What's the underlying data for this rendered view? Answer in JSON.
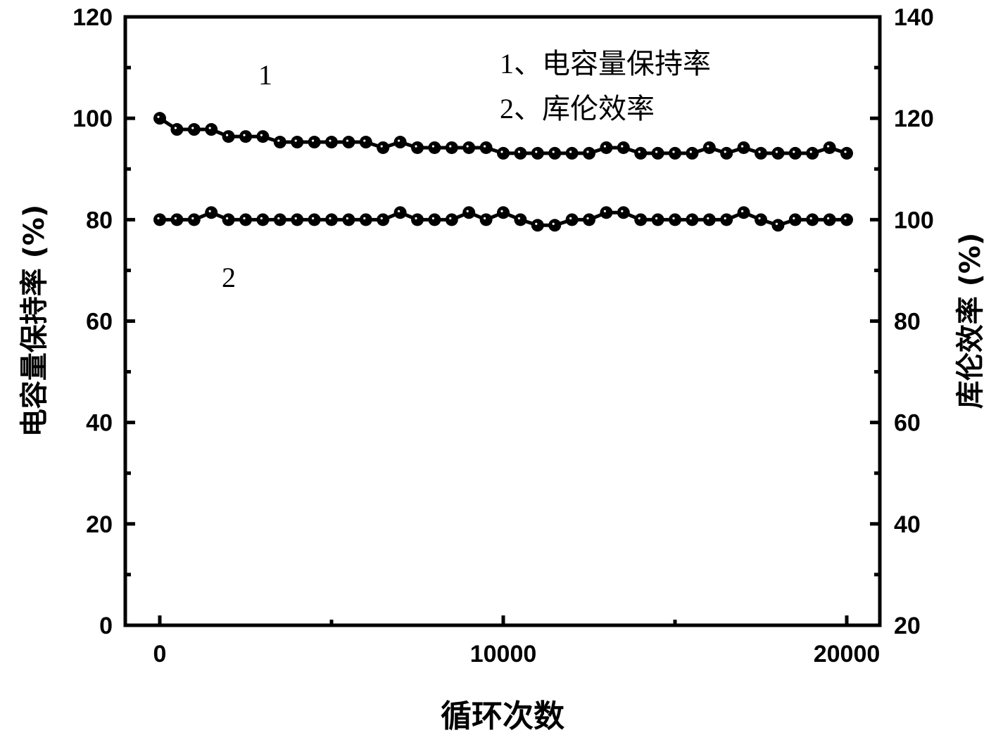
{
  "chart_data": {
    "type": "line",
    "title": "",
    "xlabel": "循环次数",
    "ylabel": "电容量保持率 (%)",
    "ylabel_right": "库伦效率 (%)",
    "xlim": [
      0,
      20000
    ],
    "ylim": [
      0,
      120
    ],
    "ylim_right": [
      20,
      140
    ],
    "x_ticks": [
      "0",
      "10000",
      "20000"
    ],
    "y_ticks": [
      "0",
      "20",
      "40",
      "60",
      "80",
      "100",
      "120"
    ],
    "y_ticks_right": [
      "20",
      "40",
      "60",
      "80",
      "100",
      "120",
      "140"
    ],
    "grid": false,
    "marker": "filled-circle",
    "x": [
      0,
      500,
      1000,
      1500,
      2000,
      2500,
      3000,
      3500,
      4000,
      4500,
      5000,
      5500,
      6000,
      6500,
      7000,
      7500,
      8000,
      8500,
      9000,
      9500,
      10000,
      10500,
      11000,
      11500,
      12000,
      12500,
      13000,
      13500,
      14000,
      14500,
      15000,
      15500,
      16000,
      16500,
      17000,
      17500,
      18000,
      18500,
      19000,
      19500,
      20000
    ],
    "series": [
      {
        "name": "1、电容量保持率",
        "label": "1",
        "axis": "left",
        "values": [
          100,
          97.8,
          97.8,
          97.8,
          96.4,
          96.4,
          96.4,
          95.3,
          95.3,
          95.3,
          95.3,
          95.3,
          95.3,
          94.2,
          95.3,
          94.2,
          94.2,
          94.2,
          94.2,
          94.2,
          93.1,
          93.1,
          93.1,
          93.1,
          93.1,
          93.1,
          94.2,
          94.2,
          93.1,
          93.1,
          93.1,
          93.1,
          94.2,
          93.1,
          94.2,
          93.1,
          93.1,
          93.1,
          93.1,
          94.2,
          93.1
        ]
      },
      {
        "name": "2、库伦效率",
        "label": "2",
        "axis": "right",
        "values": [
          100,
          100,
          100,
          101.4,
          100,
          100,
          100,
          100,
          100,
          100,
          100,
          100,
          100,
          100,
          101.4,
          100,
          100,
          100,
          101.4,
          100,
          101.4,
          100,
          98.9,
          98.9,
          100,
          100,
          101.4,
          101.4,
          100,
          100,
          100,
          100,
          100,
          100,
          101.4,
          100,
          98.9,
          100,
          100,
          100,
          100
        ]
      }
    ],
    "legend": [
      "1、电容量保持率",
      "2、库伦效率"
    ],
    "legend_position": "top-right inside",
    "annotations": [
      {
        "text": "1",
        "near": "series 1"
      },
      {
        "text": "2",
        "near": "series 2"
      }
    ]
  },
  "labels": {
    "legend_1": "1、电容量保持率",
    "legend_2": "2、库伦效率",
    "curve_1": "1",
    "curve_2": "2",
    "xlabel": "循环次数",
    "ylabel_left": "电容量保持率 (%)",
    "ylabel_right": "库伦效率 (%)"
  }
}
